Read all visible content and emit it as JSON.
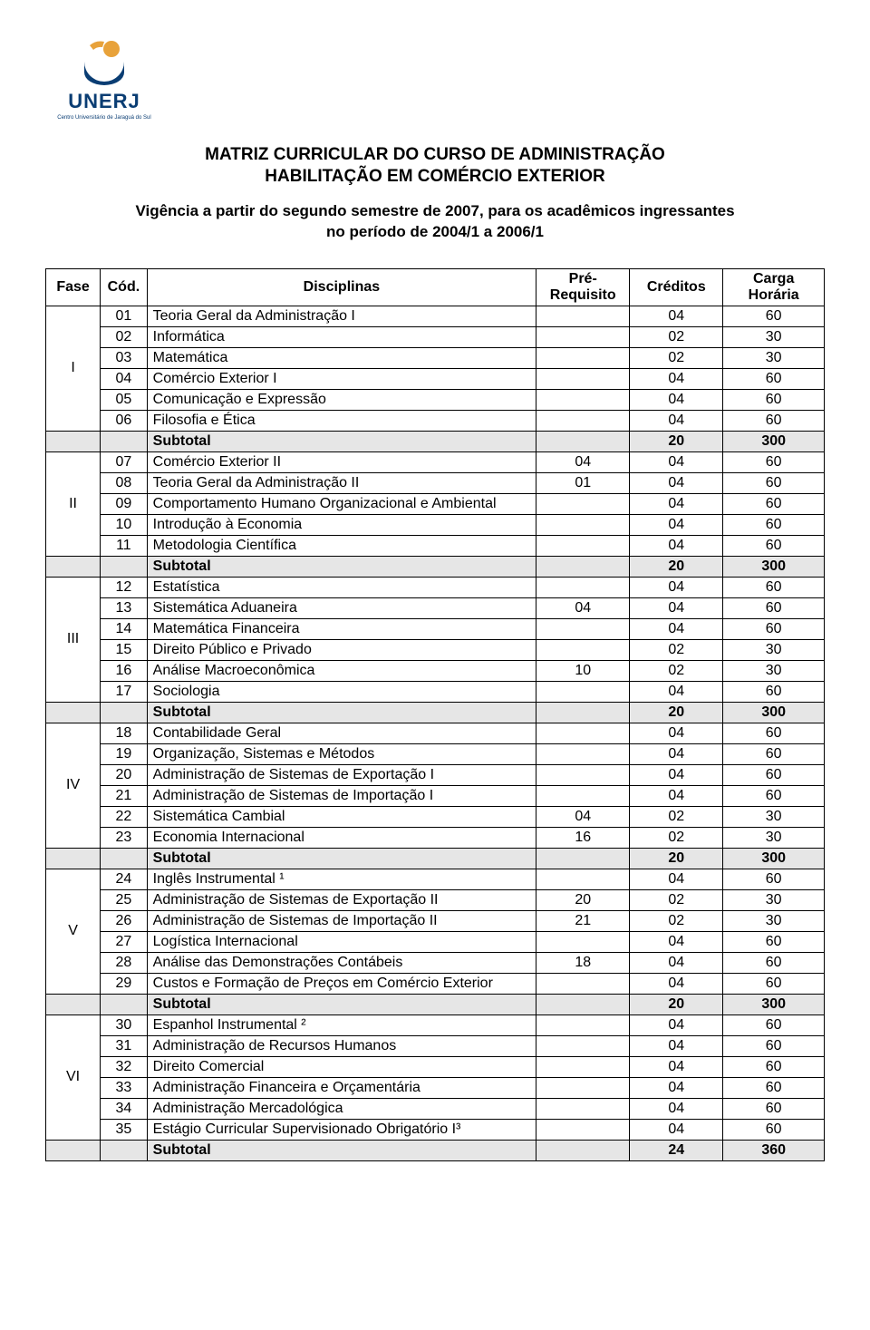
{
  "logo": {
    "name": "UNERJ",
    "tagline": "Centro Universitário de Jaraguá do Sul",
    "colors": {
      "blue": "#0a3d73",
      "orange": "#e8a23a"
    }
  },
  "title_line1": "MATRIZ CURRICULAR DO CURSO DE ADMINISTRAÇÃO",
  "title_line2": "HABILITAÇÃO EM COMÉRCIO EXTERIOR",
  "vigencia_line1": "Vigência a partir do segundo semestre de 2007, para os acadêmicos ingressantes",
  "vigencia_line2": "no período de 2004/1 a 2006/1",
  "headers": {
    "fase": "Fase",
    "cod": "Cód.",
    "disciplinas": "Disciplinas",
    "prereq_l1": "Pré-",
    "prereq_l2": "Requisito",
    "creditos": "Créditos",
    "carga_l1": "Carga",
    "carga_l2": "Horária"
  },
  "subtotal_label": "Subtotal",
  "phases": [
    {
      "fase": "I",
      "rows": [
        {
          "cod": "01",
          "disc": "Teoria Geral da Administração I",
          "pre": "",
          "cred": "04",
          "carga": "60"
        },
        {
          "cod": "02",
          "disc": "Informática",
          "pre": "",
          "cred": "02",
          "carga": "30"
        },
        {
          "cod": "03",
          "disc": "Matemática",
          "pre": "",
          "cred": "02",
          "carga": "30"
        },
        {
          "cod": "04",
          "disc": "Comércio Exterior I",
          "pre": "",
          "cred": "04",
          "carga": "60"
        },
        {
          "cod": "05",
          "disc": "Comunicação e Expressão",
          "pre": "",
          "cred": "04",
          "carga": "60"
        },
        {
          "cod": "06",
          "disc": "Filosofia e Ética",
          "pre": "",
          "cred": "04",
          "carga": "60"
        }
      ],
      "subtotal": {
        "cred": "20",
        "carga": "300"
      }
    },
    {
      "fase": "II",
      "rows": [
        {
          "cod": "07",
          "disc": "Comércio Exterior II",
          "pre": "04",
          "cred": "04",
          "carga": "60"
        },
        {
          "cod": "08",
          "disc": "Teoria Geral da Administração II",
          "pre": "01",
          "cred": "04",
          "carga": "60"
        },
        {
          "cod": "09",
          "disc": "Comportamento Humano Organizacional e Ambiental",
          "pre": "",
          "cred": "04",
          "carga": "60"
        },
        {
          "cod": "10",
          "disc": "Introdução à Economia",
          "pre": "",
          "cred": "04",
          "carga": "60"
        },
        {
          "cod": "11",
          "disc": "Metodologia Científica",
          "pre": "",
          "cred": "04",
          "carga": "60"
        }
      ],
      "subtotal": {
        "cred": "20",
        "carga": "300"
      }
    },
    {
      "fase": "III",
      "rows": [
        {
          "cod": "12",
          "disc": "Estatística",
          "pre": "",
          "cred": "04",
          "carga": "60"
        },
        {
          "cod": "13",
          "disc": "Sistemática Aduaneira",
          "pre": "04",
          "cred": "04",
          "carga": "60"
        },
        {
          "cod": "14",
          "disc": "Matemática Financeira",
          "pre": "",
          "cred": "04",
          "carga": "60"
        },
        {
          "cod": "15",
          "disc": "Direito Público e Privado",
          "pre": "",
          "cred": "02",
          "carga": "30"
        },
        {
          "cod": "16",
          "disc": "Análise Macroeconômica",
          "pre": "10",
          "cred": "02",
          "carga": "30"
        },
        {
          "cod": "17",
          "disc": "Sociologia",
          "pre": "",
          "cred": "04",
          "carga": "60"
        }
      ],
      "subtotal": {
        "cred": "20",
        "carga": "300"
      }
    },
    {
      "fase": "IV",
      "rows": [
        {
          "cod": "18",
          "disc": "Contabilidade Geral",
          "pre": "",
          "cred": "04",
          "carga": "60"
        },
        {
          "cod": "19",
          "disc": "Organização, Sistemas e Métodos",
          "pre": "",
          "cred": "04",
          "carga": "60"
        },
        {
          "cod": "20",
          "disc": "Administração de Sistemas de Exportação I",
          "pre": "",
          "cred": "04",
          "carga": "60"
        },
        {
          "cod": "21",
          "disc": "Administração de Sistemas de Importação I",
          "pre": "",
          "cred": "04",
          "carga": "60"
        },
        {
          "cod": "22",
          "disc": "Sistemática Cambial",
          "pre": "04",
          "cred": "02",
          "carga": "30"
        },
        {
          "cod": "23",
          "disc": "Economia Internacional",
          "pre": "16",
          "cred": "02",
          "carga": "30"
        }
      ],
      "subtotal": {
        "cred": "20",
        "carga": "300"
      }
    },
    {
      "fase": "V",
      "rows": [
        {
          "cod": "24",
          "disc": "Inglês Instrumental ¹",
          "pre": "",
          "cred": "04",
          "carga": "60"
        },
        {
          "cod": "25",
          "disc": "Administração de Sistemas de Exportação II",
          "pre": "20",
          "cred": "02",
          "carga": "30"
        },
        {
          "cod": "26",
          "disc": "Administração de Sistemas de Importação II",
          "pre": "21",
          "cred": "02",
          "carga": "30"
        },
        {
          "cod": "27",
          "disc": "Logística Internacional",
          "pre": "",
          "cred": "04",
          "carga": "60"
        },
        {
          "cod": "28",
          "disc": "Análise das Demonstrações Contábeis",
          "pre": "18",
          "cred": "04",
          "carga": "60"
        },
        {
          "cod": "29",
          "disc": "Custos e Formação de Preços em Comércio Exterior",
          "pre": "",
          "cred": "04",
          "carga": "60"
        }
      ],
      "subtotal": {
        "cred": "20",
        "carga": "300"
      }
    },
    {
      "fase": "VI",
      "rows": [
        {
          "cod": "30",
          "disc": "Espanhol Instrumental ²",
          "pre": "",
          "cred": "04",
          "carga": "60"
        },
        {
          "cod": "31",
          "disc": "Administração de Recursos Humanos",
          "pre": "",
          "cred": "04",
          "carga": "60"
        },
        {
          "cod": "32",
          "disc": "Direito Comercial",
          "pre": "",
          "cred": "04",
          "carga": "60"
        },
        {
          "cod": "33",
          "disc": "Administração Financeira e Orçamentária",
          "pre": "",
          "cred": "04",
          "carga": "60"
        },
        {
          "cod": "34",
          "disc": "Administração Mercadológica",
          "pre": "",
          "cred": "04",
          "carga": "60"
        },
        {
          "cod": "35",
          "disc": "Estágio Curricular Supervisionado Obrigatório I³",
          "pre": "",
          "cred": "04",
          "carga": "60"
        }
      ],
      "subtotal": {
        "cred": "24",
        "carga": "360"
      }
    }
  ],
  "col_widths": {
    "fase": "7%",
    "cod": "6%",
    "disc": "50%",
    "pre": "12%",
    "cred": "12%",
    "carga": "13%"
  },
  "subtotal_bg": "#e6e6e6"
}
